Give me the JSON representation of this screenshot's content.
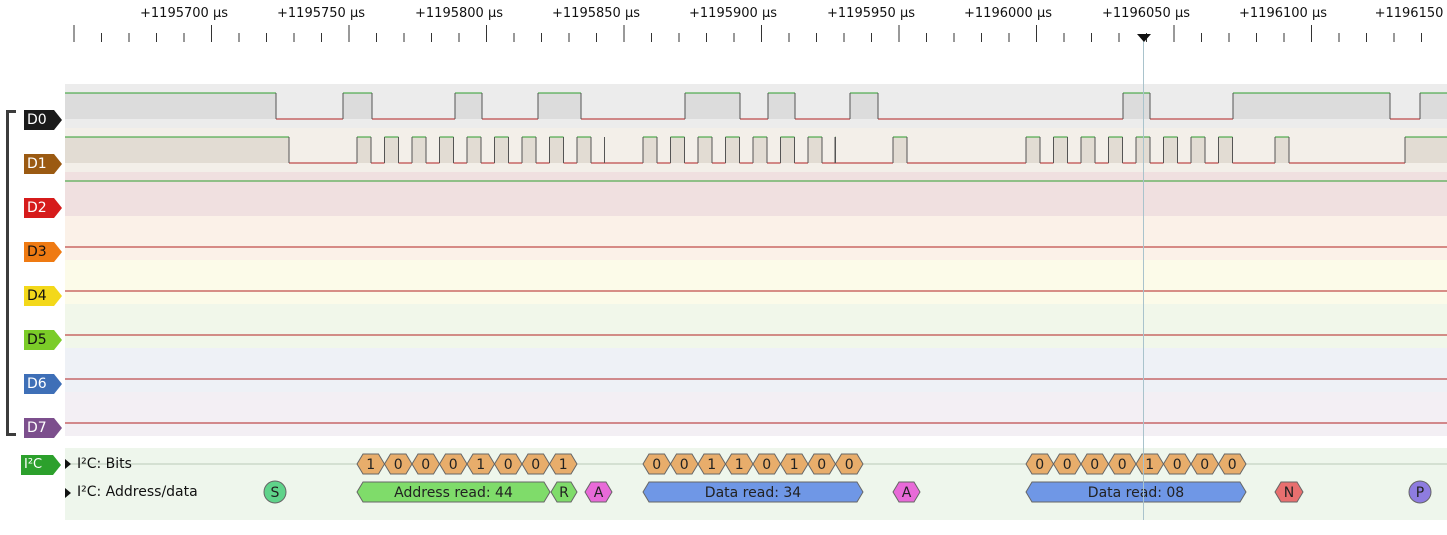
{
  "ruler": {
    "labels": [
      "+1195700 µs",
      "+1195750 µs",
      "+1195800 µs",
      "+1195850 µs",
      "+1195900 µs",
      "+1195950 µs",
      "+1196000 µs",
      "+1196050 µs",
      "+1196100 µs",
      "+1196150"
    ]
  },
  "channels": [
    {
      "name": "D0",
      "tag_color": "#1a1a1a",
      "text_color": "#ffffff",
      "lane_bg": "#ececec"
    },
    {
      "name": "D1",
      "tag_color": "#9b5a12",
      "text_color": "#ffffff",
      "lane_bg": "#f3efe9"
    },
    {
      "name": "D2",
      "tag_color": "#d61b1b",
      "text_color": "#ffffff",
      "lane_bg": "#f0e0e0"
    },
    {
      "name": "D3",
      "tag_color": "#ef7a12",
      "text_color": "#111111",
      "lane_bg": "#fbf1e8"
    },
    {
      "name": "D4",
      "tag_color": "#f3d81a",
      "text_color": "#111111",
      "lane_bg": "#fcfbe9"
    },
    {
      "name": "D5",
      "tag_color": "#7bcc28",
      "text_color": "#111111",
      "lane_bg": "#f1f7ea"
    },
    {
      "name": "D6",
      "tag_color": "#3e6fb7",
      "text_color": "#ffffff",
      "lane_bg": "#eef1f6"
    },
    {
      "name": "D7",
      "tag_color": "#7c4f8d",
      "text_color": "#ffffff",
      "lane_bg": "#f3eff4"
    }
  ],
  "decoder": {
    "tag": "I²C",
    "tag_color": "#2ca02c",
    "rows": [
      {
        "label": "I²C: Bits"
      },
      {
        "label": "I²C: Address/data"
      }
    ],
    "bits_groups": [
      {
        "bits": [
          "1",
          "0",
          "0",
          "0",
          "1",
          "0",
          "0",
          "1"
        ]
      },
      {
        "bits": [
          "0",
          "0",
          "1",
          "1",
          "0",
          "1",
          "0",
          "0"
        ]
      },
      {
        "bits": [
          "0",
          "0",
          "0",
          "0",
          "1",
          "0",
          "0",
          "0"
        ]
      }
    ],
    "annotations": [
      {
        "text": "S",
        "color": "#5fd38a",
        "kind": "circle"
      },
      {
        "text": "Address read: 44",
        "color": "#7fdc6a",
        "kind": "bar"
      },
      {
        "text": "R",
        "color": "#7fdc6a",
        "kind": "hex"
      },
      {
        "text": "A",
        "color": "#e86ad8",
        "kind": "hex"
      },
      {
        "text": "Data read: 34",
        "color": "#6f97e6",
        "kind": "bar"
      },
      {
        "text": "A",
        "color": "#e86ad8",
        "kind": "hex"
      },
      {
        "text": "Data read: 08",
        "color": "#6f97e6",
        "kind": "bar"
      },
      {
        "text": "N",
        "color": "#e86f6f",
        "kind": "hex"
      },
      {
        "text": "P",
        "color": "#8e7ce0",
        "kind": "circle"
      }
    ]
  }
}
